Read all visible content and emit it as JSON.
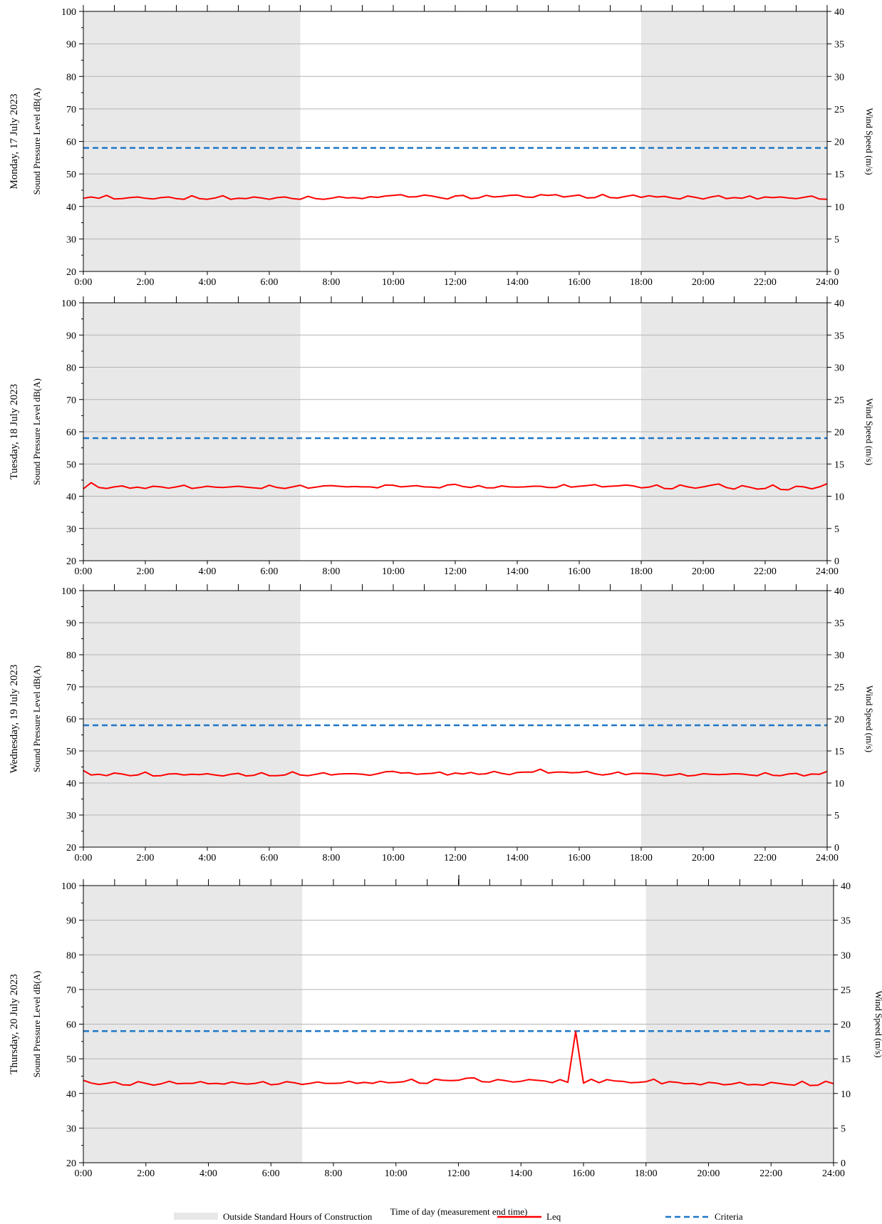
{
  "figure": {
    "xlabel": "Time of day (measurement end time)",
    "legend": [
      {
        "key": "shade",
        "label": "Outside Standard Hours of Construction",
        "color": "#e8e8e8"
      },
      {
        "key": "leq",
        "label": "Leq",
        "color": "#ff0000"
      },
      {
        "key": "criteria",
        "label": "Criteria",
        "color": "#1f77c8"
      }
    ]
  },
  "chart_data": [
    {
      "type": "line",
      "day": "Monday, 17 July 2023",
      "ylabel": "Sound Pressure Level dB(A)",
      "y2label": "Wind Speed (m/s)",
      "xlim": [
        0,
        24
      ],
      "ylim": [
        20,
        100
      ],
      "y2lim": [
        0,
        40
      ],
      "x_ticks": [
        "0:00",
        "2:00",
        "4:00",
        "6:00",
        "8:00",
        "10:00",
        "12:00",
        "14:00",
        "16:00",
        "18:00",
        "20:00",
        "22:00",
        "24:00"
      ],
      "y_ticks": [
        20,
        30,
        40,
        50,
        60,
        70,
        80,
        90,
        100
      ],
      "y2_ticks": [
        0,
        5,
        10,
        15,
        20,
        25,
        30,
        35,
        40
      ],
      "shaded_hours": [
        [
          0,
          7
        ],
        [
          18,
          24
        ]
      ],
      "grid": "horizontal",
      "criteria": 58,
      "series": [
        {
          "name": "Leq",
          "step_minutes": 15,
          "start_hour": 0,
          "values": [
            42.5,
            42.9,
            42.5,
            43.4,
            42.3,
            42.4,
            42.7,
            42.9,
            42.5,
            42.3,
            42.7,
            42.9,
            42.4,
            42.2,
            43.3,
            42.4,
            42.2,
            42.6,
            43.3,
            42.2,
            42.5,
            42.4,
            42.9,
            42.6,
            42.2,
            42.7,
            42.9,
            42.4,
            42.2,
            43.1,
            42.4,
            42.2,
            42.5,
            43.0,
            42.6,
            42.7,
            42.4,
            43.0,
            42.8,
            43.2,
            43.4,
            43.6,
            42.9,
            43.0,
            43.5,
            43.2,
            42.7,
            42.3,
            43.2,
            43.4,
            42.4,
            42.6,
            43.4,
            42.9,
            43.1,
            43.4,
            43.5,
            42.9,
            42.8,
            43.6,
            43.4,
            43.6,
            42.9,
            43.2,
            43.5,
            42.6,
            42.7,
            43.7,
            42.7,
            42.6,
            43.1,
            43.5,
            42.8,
            43.3,
            42.9,
            43.1,
            42.6,
            42.3,
            43.2,
            42.8,
            42.3,
            42.9,
            43.3,
            42.4,
            42.7,
            42.5,
            43.2,
            42.3,
            42.9,
            42.7,
            42.9,
            42.6,
            42.4,
            42.8,
            43.2,
            42.3,
            42.2
          ]
        }
      ]
    },
    {
      "type": "line",
      "day": "Tuesday, 18 July 2023",
      "ylabel": "Sound Pressure Level dB(A)",
      "y2label": "Wind Speed (m/s)",
      "xlim": [
        0,
        24
      ],
      "ylim": [
        20,
        100
      ],
      "y2lim": [
        0,
        40
      ],
      "x_ticks": [
        "0:00",
        "2:00",
        "4:00",
        "6:00",
        "8:00",
        "10:00",
        "12:00",
        "14:00",
        "16:00",
        "18:00",
        "20:00",
        "22:00",
        "24:00"
      ],
      "y_ticks": [
        20,
        30,
        40,
        50,
        60,
        70,
        80,
        90,
        100
      ],
      "y2_ticks": [
        0,
        5,
        10,
        15,
        20,
        25,
        30,
        35,
        40
      ],
      "shaded_hours": [
        [
          0,
          7
        ],
        [
          18,
          24
        ]
      ],
      "grid": "horizontal",
      "criteria": 58,
      "series": [
        {
          "name": "Leq",
          "step_minutes": 15,
          "start_hour": 0,
          "values": [
            42.3,
            44.2,
            42.7,
            42.4,
            42.9,
            43.2,
            42.5,
            42.8,
            42.4,
            43.1,
            42.9,
            42.5,
            42.9,
            43.4,
            42.4,
            42.7,
            43.1,
            42.8,
            42.7,
            42.9,
            43.1,
            42.8,
            42.6,
            42.4,
            43.4,
            42.7,
            42.4,
            42.9,
            43.4,
            42.5,
            42.8,
            43.2,
            43.3,
            43.1,
            42.9,
            43.0,
            42.9,
            42.9,
            42.6,
            43.5,
            43.4,
            42.9,
            43.1,
            43.3,
            42.9,
            42.8,
            42.6,
            43.5,
            43.7,
            43.0,
            42.7,
            43.3,
            42.6,
            42.6,
            43.2,
            42.9,
            42.8,
            42.9,
            43.1,
            43.1,
            42.7,
            42.7,
            43.6,
            42.8,
            43.1,
            43.3,
            43.6,
            42.9,
            43.1,
            43.2,
            43.5,
            43.2,
            42.6,
            42.8,
            43.5,
            42.4,
            42.3,
            43.5,
            42.9,
            42.5,
            42.9,
            43.4,
            43.8,
            42.7,
            42.2,
            43.3,
            42.8,
            42.2,
            42.4,
            43.5,
            42.1,
            42.0,
            43.1,
            42.9,
            42.3,
            42.9,
            43.9
          ]
        }
      ]
    },
    {
      "type": "line",
      "day": "Wednesday, 19 July 2023",
      "ylabel": "Sound Pressure Level dB(A)",
      "y2label": "Wind Speed (m/s)",
      "xlim": [
        0,
        24
      ],
      "ylim": [
        20,
        100
      ],
      "y2lim": [
        0,
        40
      ],
      "x_ticks": [
        "0:00",
        "2:00",
        "4:00",
        "6:00",
        "8:00",
        "10:00",
        "12:00",
        "14:00",
        "16:00",
        "18:00",
        "20:00",
        "22:00",
        "24:00"
      ],
      "y_ticks": [
        20,
        30,
        40,
        50,
        60,
        70,
        80,
        90,
        100
      ],
      "y2_ticks": [
        0,
        5,
        10,
        15,
        20,
        25,
        30,
        35,
        40
      ],
      "shaded_hours": [
        [
          0,
          7
        ],
        [
          18,
          24
        ]
      ],
      "grid": "horizontal",
      "criteria": 58,
      "series": [
        {
          "name": "Leq",
          "step_minutes": 15,
          "start_hour": 0,
          "values": [
            43.9,
            42.5,
            42.7,
            42.3,
            43.1,
            42.8,
            42.3,
            42.5,
            43.4,
            42.2,
            42.3,
            42.8,
            42.9,
            42.5,
            42.7,
            42.6,
            42.9,
            42.5,
            42.2,
            42.7,
            43.0,
            42.2,
            42.4,
            43.2,
            42.3,
            42.3,
            42.5,
            43.5,
            42.5,
            42.3,
            42.7,
            43.2,
            42.5,
            42.8,
            42.9,
            42.9,
            42.7,
            42.4,
            42.9,
            43.5,
            43.6,
            43.1,
            43.2,
            42.7,
            42.9,
            43.0,
            43.4,
            42.5,
            43.1,
            42.8,
            43.3,
            42.7,
            42.9,
            43.6,
            43.0,
            42.6,
            43.3,
            43.4,
            43.4,
            44.3,
            43.1,
            43.4,
            43.4,
            43.2,
            43.3,
            43.6,
            42.9,
            42.5,
            42.8,
            43.4,
            42.6,
            43.0,
            43.0,
            42.9,
            42.7,
            42.3,
            42.5,
            42.9,
            42.2,
            42.4,
            42.9,
            42.7,
            42.6,
            42.7,
            42.9,
            42.8,
            42.5,
            42.3,
            43.2,
            42.4,
            42.3,
            42.8,
            43.0,
            42.2,
            42.8,
            42.7,
            43.6
          ]
        }
      ]
    },
    {
      "type": "line",
      "day": "Thursday, 20 July 2023",
      "ylabel": "Sound Pressure Level dB(A)",
      "y2label": "Wind Speed (m/s)",
      "xlim": [
        0,
        24
      ],
      "ylim": [
        20,
        100
      ],
      "y2lim": [
        0,
        40
      ],
      "x_ticks": [
        "0:00",
        "2:00",
        "4:00",
        "6:00",
        "8:00",
        "10:00",
        "12:00",
        "14:00",
        "16:00",
        "18:00",
        "20:00",
        "22:00",
        "24:00"
      ],
      "y_ticks": [
        20,
        30,
        40,
        50,
        60,
        70,
        80,
        90,
        100
      ],
      "y2_ticks": [
        0,
        5,
        10,
        15,
        20,
        25,
        30,
        35,
        40
      ],
      "shaded_hours": [
        [
          0,
          7
        ],
        [
          18,
          24
        ]
      ],
      "grid": "horizontal",
      "criteria": 58,
      "series": [
        {
          "name": "Leq",
          "step_minutes": 15,
          "start_hour": 0,
          "values": [
            43.8,
            43.0,
            42.6,
            42.9,
            43.3,
            42.5,
            42.4,
            43.4,
            42.9,
            42.4,
            42.8,
            43.5,
            42.8,
            42.9,
            42.9,
            43.4,
            42.8,
            42.9,
            42.7,
            43.3,
            42.9,
            42.7,
            42.9,
            43.4,
            42.5,
            42.7,
            43.4,
            43.1,
            42.6,
            42.9,
            43.3,
            42.9,
            42.9,
            43.0,
            43.5,
            42.9,
            43.2,
            42.9,
            43.5,
            43.1,
            43.2,
            43.4,
            44.1,
            43.0,
            42.9,
            44.1,
            43.8,
            43.7,
            43.8,
            44.4,
            44.5,
            43.4,
            43.3,
            44.0,
            43.7,
            43.3,
            43.5,
            44.0,
            43.8,
            43.6,
            43.1,
            44.0,
            43.2,
            57.9,
            43.0,
            44.1,
            43.1,
            44.0,
            43.6,
            43.5,
            43.1,
            43.2,
            43.4,
            44.1,
            42.8,
            43.4,
            43.2,
            42.8,
            42.9,
            42.5,
            43.2,
            43.0,
            42.5,
            42.7,
            43.2,
            42.5,
            42.6,
            42.4,
            43.2,
            42.9,
            42.6,
            42.4,
            43.5,
            42.3,
            42.4,
            43.5,
            42.8
          ]
        }
      ]
    }
  ]
}
